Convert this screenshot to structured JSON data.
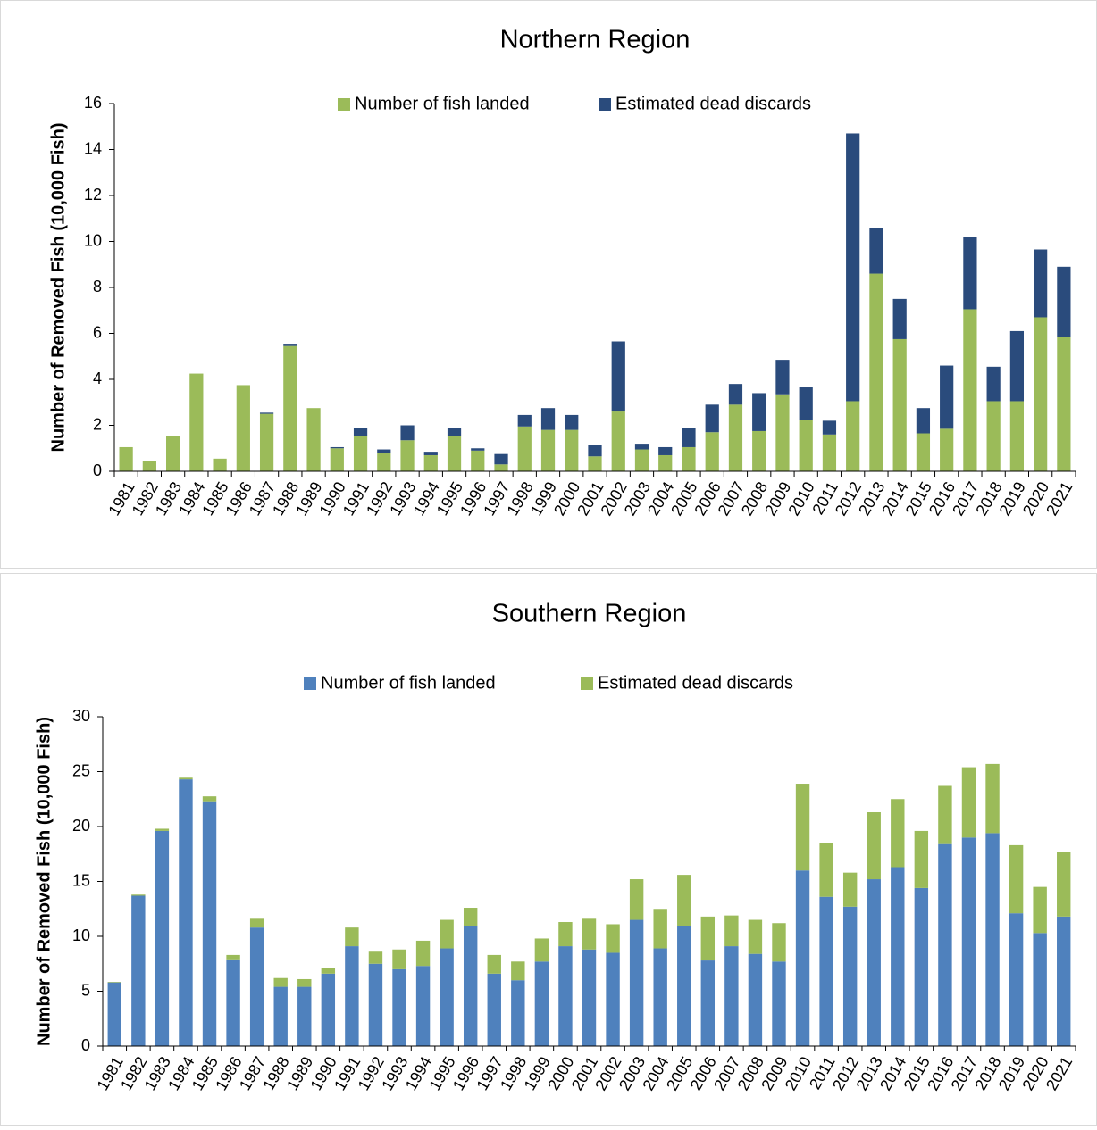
{
  "chart_data": [
    {
      "type": "stacked-bar",
      "title": "Northern Region",
      "y_label": "Number of Removed Fish (10,000 Fish)",
      "categories": [
        "1981",
        "1982",
        "1983",
        "1984",
        "1985",
        "1986",
        "1987",
        "1988",
        "1989",
        "1990",
        "1991",
        "1992",
        "1993",
        "1994",
        "1995",
        "1996",
        "1997",
        "1998",
        "1999",
        "2000",
        "2001",
        "2002",
        "2003",
        "2004",
        "2005",
        "2006",
        "2007",
        "2008",
        "2009",
        "2010",
        "2011",
        "2012",
        "2013",
        "2014",
        "2015",
        "2016",
        "2017",
        "2018",
        "2019",
        "2020",
        "2021"
      ],
      "series": [
        {
          "name": "Number of fish landed",
          "color": "#9bbb59",
          "values": [
            1.05,
            0.45,
            1.55,
            4.25,
            0.55,
            3.75,
            2.5,
            5.45,
            2.75,
            1.0,
            1.55,
            0.8,
            1.35,
            0.7,
            1.55,
            0.9,
            0.3,
            1.95,
            1.8,
            1.8,
            0.65,
            2.6,
            0.95,
            0.7,
            1.05,
            1.7,
            2.9,
            1.75,
            3.35,
            2.25,
            1.6,
            3.05,
            8.6,
            5.75,
            1.65,
            1.85,
            7.05,
            3.05,
            3.05,
            6.7,
            5.85
          ]
        },
        {
          "name": "Estimated dead discards",
          "color": "#2a4b7c",
          "values": [
            0,
            0,
            0,
            0,
            0,
            0,
            0.05,
            0.1,
            0,
            0.05,
            0.35,
            0.15,
            0.65,
            0.15,
            0.35,
            0.1,
            0.45,
            0.5,
            0.95,
            0.65,
            0.5,
            3.05,
            0.25,
            0.35,
            0.85,
            1.2,
            0.9,
            1.65,
            1.5,
            1.4,
            0.6,
            11.65,
            2.0,
            1.75,
            1.1,
            2.75,
            3.15,
            1.5,
            3.05,
            2.95,
            3.05
          ]
        }
      ],
      "ylim": [
        0,
        16
      ],
      "yticks": [
        0,
        2,
        4,
        6,
        8,
        10,
        12,
        14,
        16
      ],
      "grid": false
    },
    {
      "type": "stacked-bar",
      "title": "Southern Region",
      "y_label": "Number of Removed Fish (10,000 Fish)",
      "categories": [
        "1981",
        "1982",
        "1983",
        "1984",
        "1985",
        "1986",
        "1987",
        "1988",
        "1989",
        "1990",
        "1991",
        "1992",
        "1993",
        "1994",
        "1995",
        "1996",
        "1997",
        "1998",
        "1999",
        "2000",
        "2001",
        "2002",
        "2003",
        "2004",
        "2005",
        "2006",
        "2007",
        "2008",
        "2009",
        "2010",
        "2011",
        "2012",
        "2013",
        "2014",
        "2015",
        "2016",
        "2017",
        "2018",
        "2019",
        "2020",
        "2021"
      ],
      "series": [
        {
          "name": "Number of fish landed",
          "color": "#4f81bd",
          "values": [
            5.8,
            13.7,
            19.6,
            24.3,
            22.3,
            7.9,
            10.8,
            5.4,
            5.4,
            6.6,
            9.1,
            7.5,
            7.0,
            7.3,
            8.9,
            10.9,
            6.6,
            6.0,
            7.7,
            9.1,
            8.8,
            8.5,
            11.5,
            8.9,
            10.9,
            7.8,
            9.1,
            8.4,
            7.7,
            16.0,
            13.6,
            12.7,
            15.2,
            16.3,
            14.4,
            18.4,
            19.0,
            19.4,
            12.1,
            10.3,
            11.8
          ]
        },
        {
          "name": "Estimated dead discards",
          "color": "#9bbb59",
          "values": [
            0.05,
            0.1,
            0.2,
            0.15,
            0.45,
            0.4,
            0.8,
            0.8,
            0.7,
            0.5,
            1.7,
            1.1,
            1.8,
            2.3,
            2.6,
            1.7,
            1.7,
            1.7,
            2.1,
            2.2,
            2.8,
            2.6,
            3.7,
            3.6,
            4.7,
            4.0,
            2.8,
            3.1,
            3.5,
            7.9,
            4.9,
            3.1,
            6.1,
            6.2,
            5.2,
            5.3,
            6.4,
            6.3,
            6.2,
            4.2,
            5.9
          ]
        }
      ],
      "ylim": [
        0,
        30
      ],
      "yticks": [
        0,
        5,
        10,
        15,
        20,
        25,
        30
      ],
      "grid": false
    }
  ]
}
